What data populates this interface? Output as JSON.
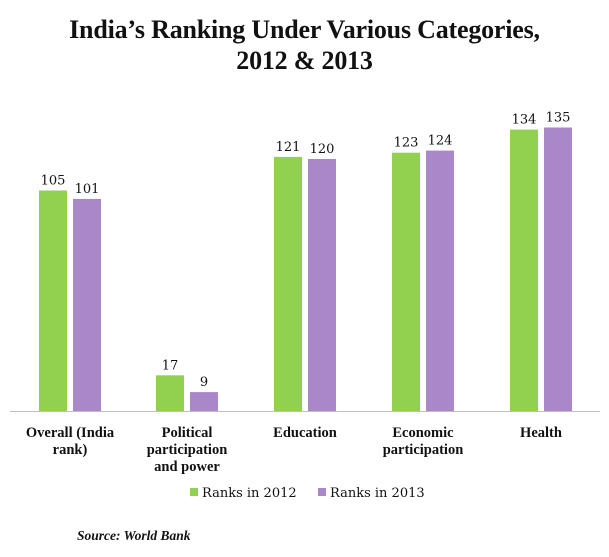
{
  "chart_data": {
    "type": "bar",
    "title": "India’s Ranking Under Various Categories, 2012 & 2013",
    "title_lines": [
      "India’s Ranking Under Various Categories,",
      "2012 & 2013"
    ],
    "categories": [
      [
        "Overall (India",
        "rank)"
      ],
      [
        "Political",
        "participation",
        "and power"
      ],
      [
        "Education"
      ],
      [
        "Economic",
        "participation"
      ],
      [
        "Health"
      ]
    ],
    "series": [
      {
        "name": "Ranks in 2012",
        "color": "#92d050",
        "values": [
          105,
          17,
          121,
          123,
          134
        ]
      },
      {
        "name": "Ranks in 2013",
        "color": "#a987c8",
        "values": [
          101,
          9,
          120,
          124,
          135
        ]
      }
    ],
    "ylim": [
      0,
      150
    ],
    "grid": false,
    "legend": "bottom",
    "source": "Source: World Bank"
  }
}
